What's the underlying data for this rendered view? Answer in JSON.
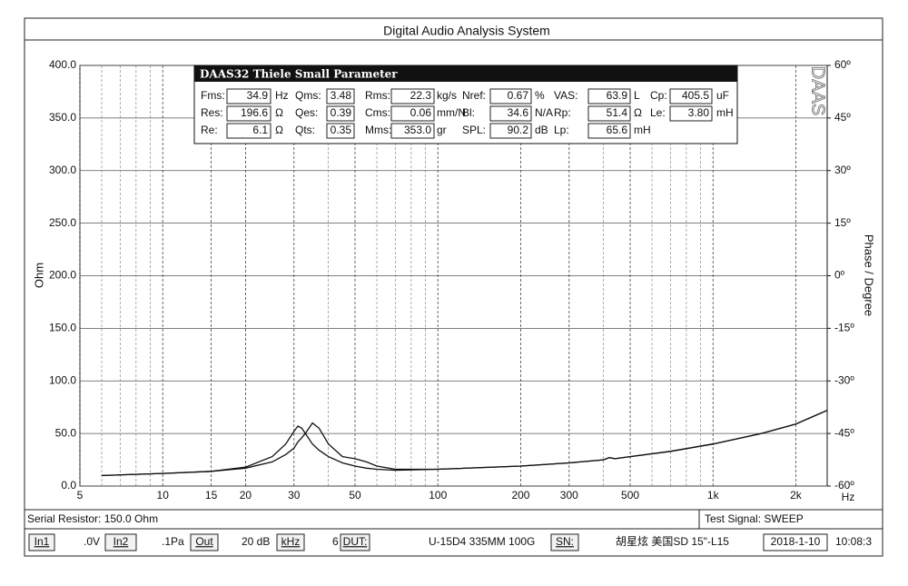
{
  "window": {
    "title": "Digital Audio Analysis System"
  },
  "chart_data": {
    "type": "line",
    "y_label": "Ohm",
    "y2_label": "Phase / Degree",
    "x_unit": "Hz",
    "watermark": "DAAS",
    "x_log": true,
    "grid": true,
    "x": [
      6,
      10,
      15,
      20,
      25,
      28,
      30,
      31,
      32,
      33,
      35,
      37,
      40,
      45,
      50,
      55,
      60,
      70,
      100,
      200,
      300,
      400,
      420,
      440,
      500,
      700,
      1000,
      1500,
      2000,
      2600
    ],
    "series": [
      {
        "color": "#111111",
        "values": [
          10,
          12,
          14,
          18,
          28,
          40,
          52,
          57,
          55,
          50,
          40,
          34,
          28,
          22,
          19,
          17,
          16,
          15,
          16,
          19,
          22,
          25,
          27,
          26,
          28,
          33,
          40,
          50,
          59,
          72
        ]
      },
      {
        "color": "#111111",
        "values": [
          10,
          12,
          14,
          17,
          23,
          30,
          36,
          42,
          46,
          50,
          60,
          55,
          40,
          28,
          26,
          23,
          19,
          16,
          16,
          19,
          22,
          25,
          27,
          26,
          28,
          33,
          40,
          50,
          59,
          72
        ]
      }
    ],
    "xlim": [
      5,
      2600
    ],
    "xticks": [
      5,
      10,
      15,
      20,
      30,
      50,
      100,
      200,
      300,
      500,
      {
        "value": 1000,
        "label": "1k"
      },
      {
        "value": 2000,
        "label": "2k"
      }
    ],
    "xminor": [
      6,
      7,
      8,
      9,
      40,
      60,
      70,
      80,
      90,
      400,
      600,
      700,
      800,
      900
    ],
    "ylim": [
      0,
      400
    ],
    "yticks": [
      {
        "value": 0,
        "label": "0.0"
      },
      {
        "value": 50,
        "label": "50.0"
      },
      {
        "value": 100,
        "label": "100.0"
      },
      {
        "value": 150,
        "label": "150.0"
      },
      {
        "value": 200,
        "label": "200.0"
      },
      {
        "value": 250,
        "label": "250.0"
      },
      {
        "value": 300,
        "label": "300.0"
      },
      {
        "value": 350,
        "label": "350.0"
      },
      {
        "value": 400,
        "label": "400.0"
      }
    ],
    "y2lim": [
      -60,
      60
    ],
    "y2ticks": [
      {
        "value": -60,
        "label": "-60º"
      },
      {
        "value": -45,
        "label": "-45º"
      },
      {
        "value": -30,
        "label": "-30º"
      },
      {
        "value": -15,
        "label": "-15º"
      },
      {
        "value": 0,
        "label": "0º"
      },
      {
        "value": 15,
        "label": "15º"
      },
      {
        "value": 30,
        "label": "30º"
      },
      {
        "value": 45,
        "label": "45º"
      },
      {
        "value": 60,
        "label": "60º"
      }
    ]
  },
  "ts_panel": {
    "title": "DAAS32 Thiele Small Parameter",
    "rows": [
      [
        {
          "label": "Fms:",
          "value": "34.9",
          "unit": "Hz"
        },
        {
          "label": "Qms:",
          "value": "3.48"
        },
        {
          "label": "Rms:",
          "value": "22.3",
          "unit": "kg/s"
        },
        {
          "label": "Nref:",
          "value": "0.67",
          "unit": "%"
        },
        {
          "label": "VAS:",
          "value": "63.9",
          "unit": "L"
        },
        {
          "label": "Cp:",
          "value": "405.5",
          "unit": "uF"
        }
      ],
      [
        {
          "label": "Res:",
          "value": "196.6",
          "unit": "Ω"
        },
        {
          "label": "Qes:",
          "value": "0.39"
        },
        {
          "label": "Cms:",
          "value": "0.06",
          "unit": "mm/N"
        },
        {
          "label": "Bl:",
          "value": "34.6",
          "unit": "N/A"
        },
        {
          "label": "Rp:",
          "value": "51.4",
          "unit": "Ω"
        },
        {
          "label": "Le:",
          "value": "3.80",
          "unit": "mH"
        }
      ],
      [
        {
          "label": "Re:",
          "value": "6.1",
          "unit": "Ω"
        },
        {
          "label": "Qts:",
          "value": "0.35"
        },
        {
          "label": "Mms:",
          "value": "353.0",
          "unit": "gr"
        },
        {
          "label": "SPL:",
          "value": "90.2",
          "unit": "dB"
        },
        {
          "label": "Lp:",
          "value": "65.6",
          "unit": "mH"
        }
      ]
    ]
  },
  "status": {
    "serial_resistor": "Serial Resistor: 150.0 Ohm",
    "test_signal": "Test Signal: SWEEP",
    "in1": "In1",
    "in1_value": ".0V",
    "in2": "In2",
    "in2_value": ".1Pa",
    "out": "Out",
    "out_value": "20 dB",
    "khz": "kHz",
    "khz_value": "6",
    "dut": "DUT:",
    "dut_value": "U-15D4   335MM   100G",
    "sn": "SN:",
    "sn_value": "胡星炫   美国SD  15\"-L15",
    "date": "2018-1-10",
    "time": "10:08:3"
  }
}
